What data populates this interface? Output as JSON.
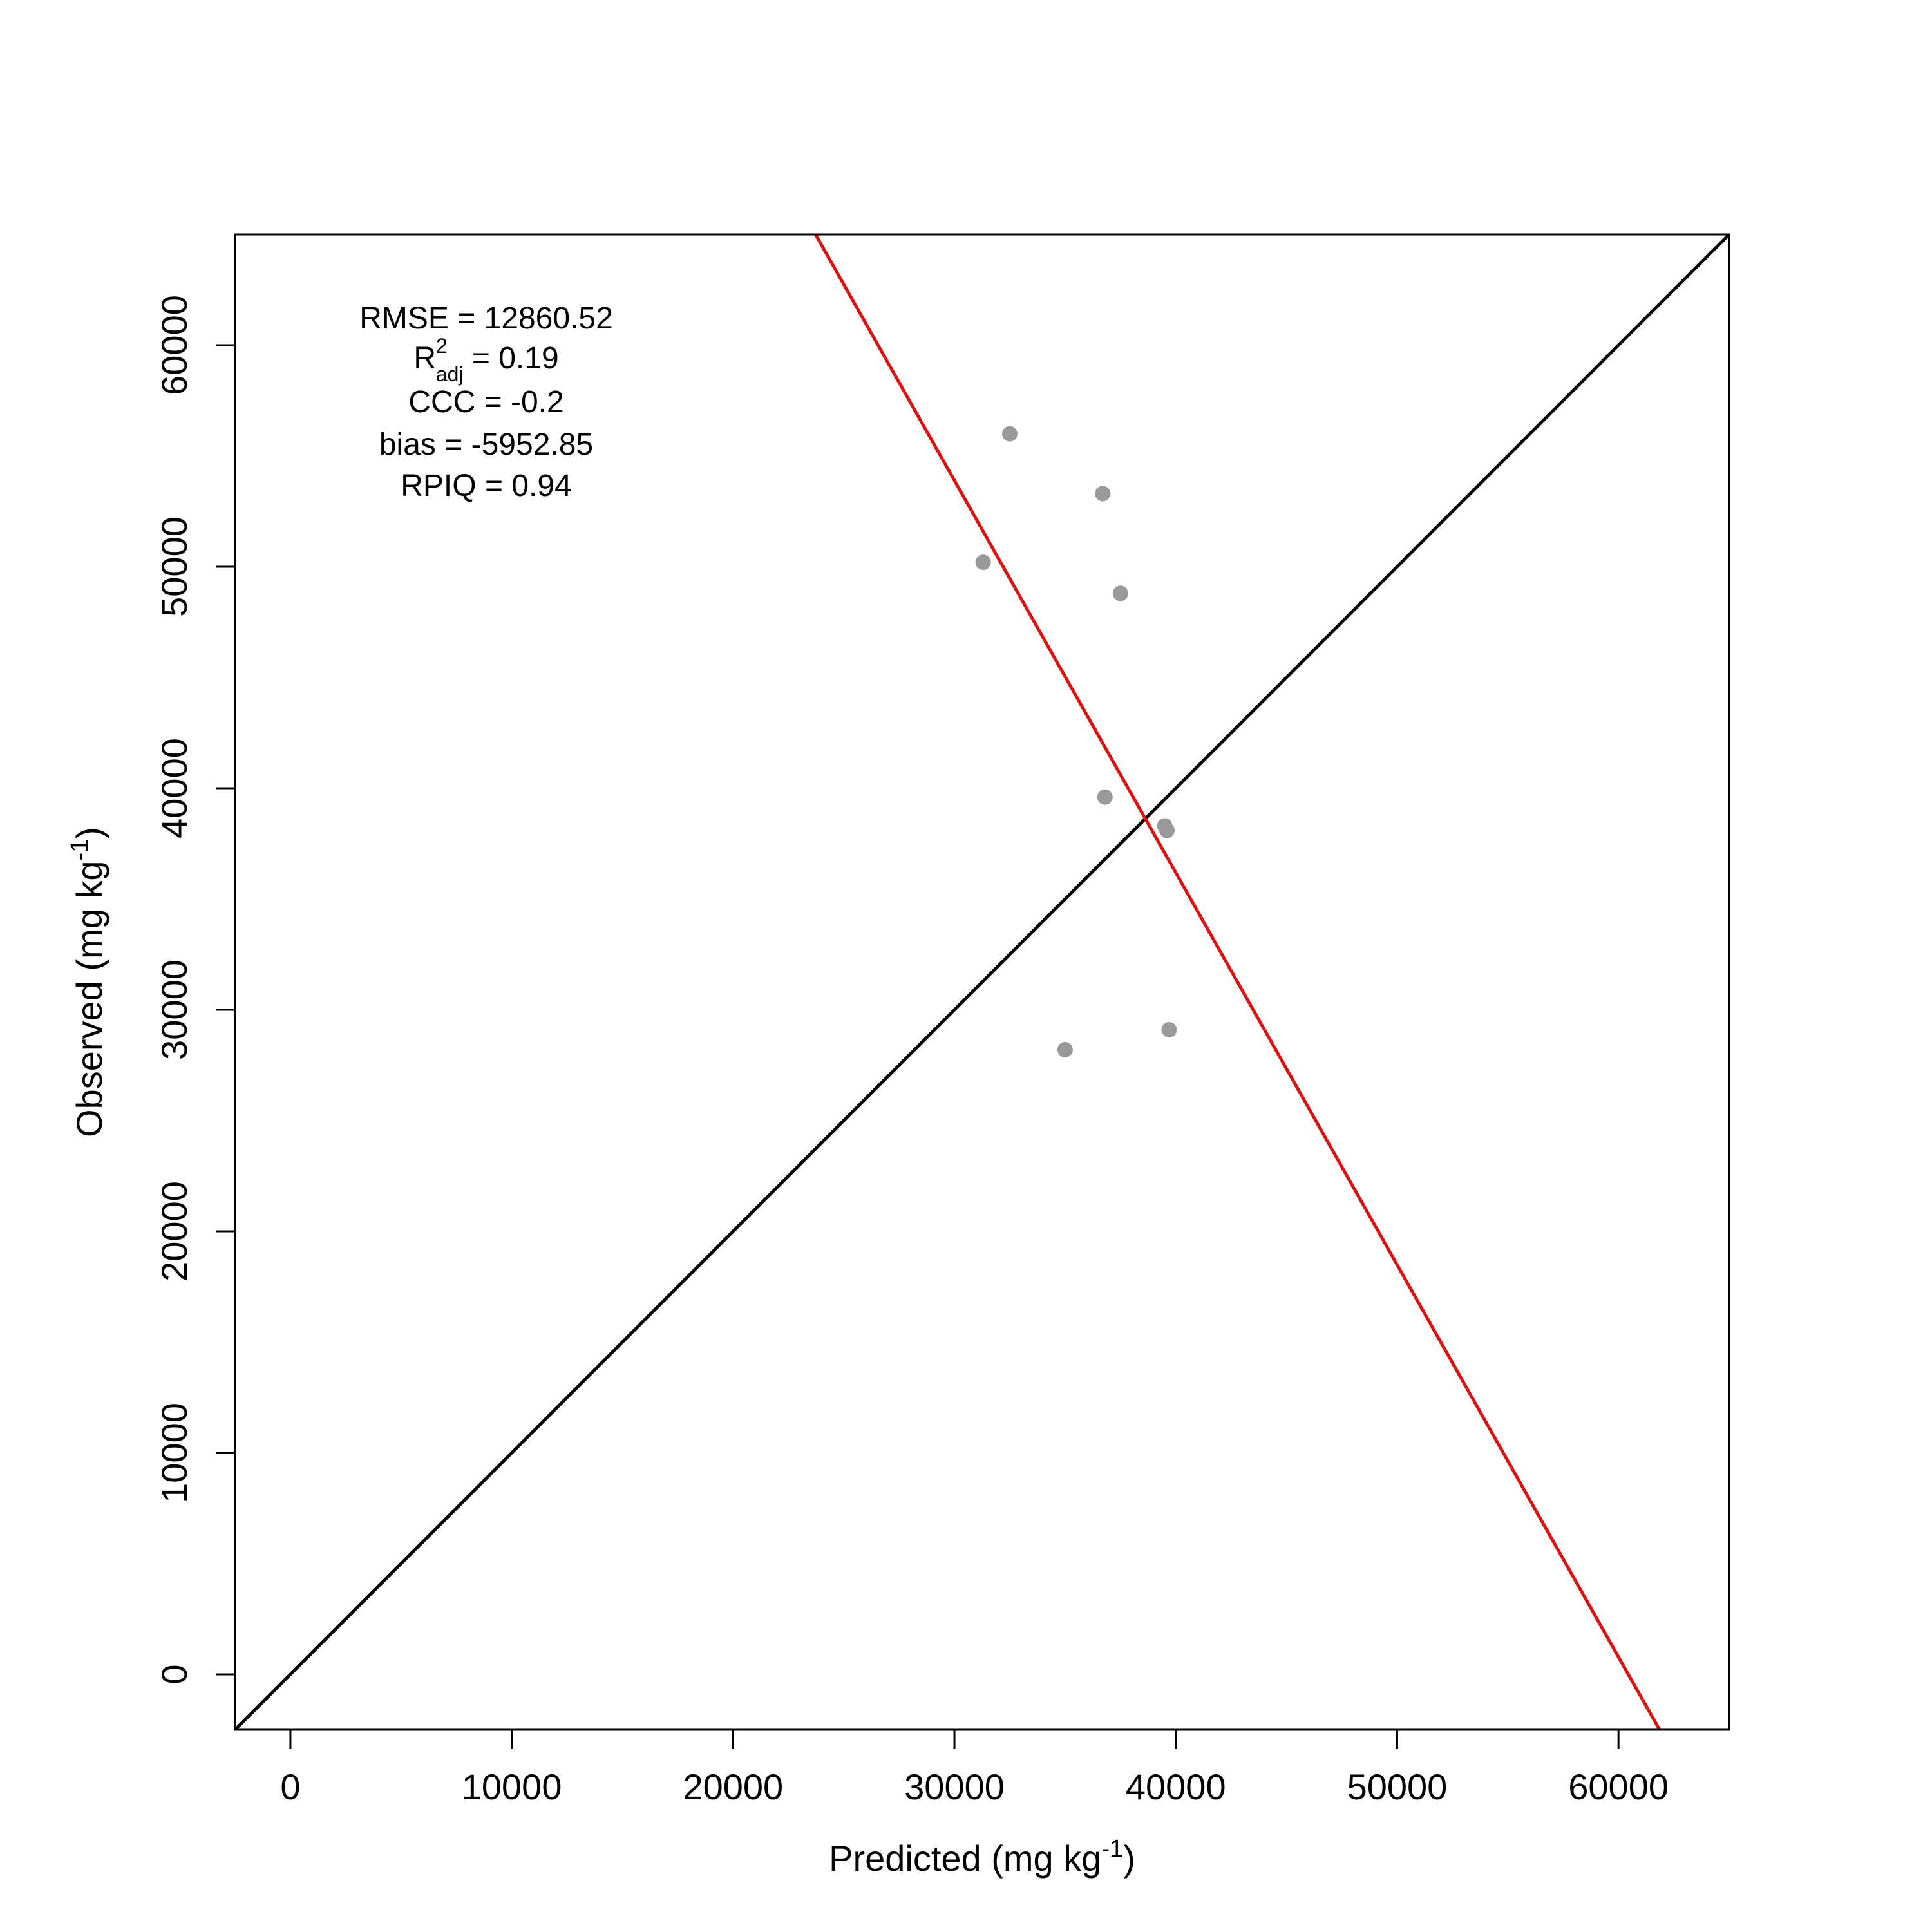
{
  "chart_data": {
    "type": "scatter",
    "xlabel": {
      "prefix": "Predicted (mg kg",
      "superscript": "-1",
      "suffix": ")"
    },
    "ylabel": {
      "prefix": "Observed (mg kg",
      "superscript": "-1",
      "suffix": ")"
    },
    "xlim": [
      -2500,
      65000
    ],
    "ylim": [
      -2500,
      65000
    ],
    "x_ticks": [
      0,
      10000,
      20000,
      30000,
      40000,
      50000,
      60000
    ],
    "y_ticks": [
      0,
      10000,
      20000,
      30000,
      40000,
      50000,
      60000
    ],
    "x_tick_labels": [
      "0",
      "10000",
      "20000",
      "30000",
      "40000",
      "50000",
      "60000"
    ],
    "y_tick_labels": [
      "0",
      "10000",
      "20000",
      "30000",
      "40000",
      "50000",
      "60000"
    ],
    "points": [
      {
        "x": 32500,
        "y": 56000
      },
      {
        "x": 36700,
        "y": 53300
      },
      {
        "x": 31300,
        "y": 50200
      },
      {
        "x": 37500,
        "y": 48800
      },
      {
        "x": 36800,
        "y": 39600
      },
      {
        "x": 39500,
        "y": 38300
      },
      {
        "x": 39600,
        "y": 38100
      },
      {
        "x": 35000,
        "y": 28200
      },
      {
        "x": 39700,
        "y": 29100
      }
    ],
    "point_color": "#999999",
    "reference_line": {
      "kind": "1:1",
      "color": "#000000"
    },
    "fit_line": {
      "slope": -1.7702,
      "intercept": 107000,
      "color": "#dd1111"
    },
    "grid": false,
    "legend": "none",
    "stats": {
      "rmse": {
        "label": "RMSE",
        "value": "12860.52"
      },
      "r2adj": {
        "label": "R",
        "sup": "2",
        "sub": "adj",
        "value": "0.19"
      },
      "ccc": {
        "label": "CCC",
        "value": "-0.2"
      },
      "bias": {
        "label": "bias",
        "value": "-5952.85"
      },
      "rpiq": {
        "label": "RPIQ",
        "value": "0.94"
      }
    },
    "stats_placement": "top-left"
  }
}
